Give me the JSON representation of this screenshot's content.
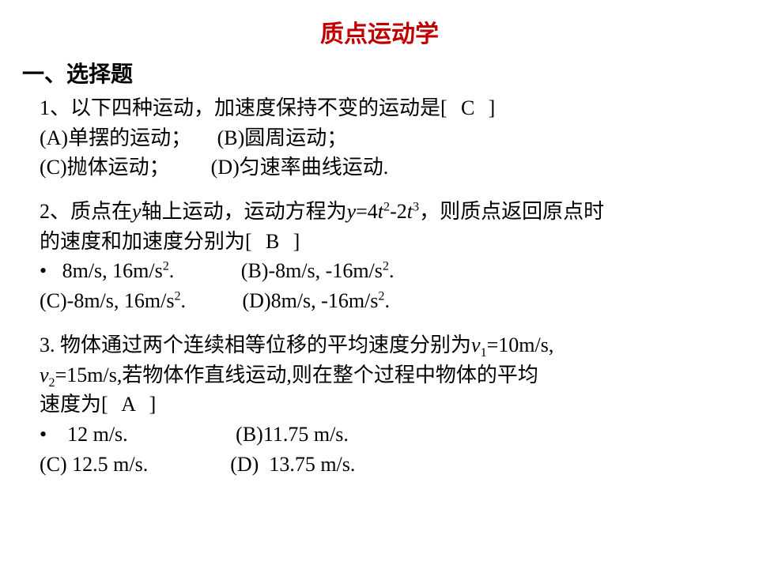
{
  "title": "质点运动学",
  "section": "一、选择题",
  "q1": {
    "stem_a": "1、以下四种运动，加速度保持不变的运动是[",
    "answer": "C",
    "stem_b": "]",
    "line2": "(A)单摆的运动；     (B)圆周运动；",
    "line3": "(C)抛体运动；        (D)匀速率曲线运动."
  },
  "q2": {
    "l1a": "2、质点在",
    "l1b": "轴上运动，运动方程为",
    "l1c": "=4",
    "l1d": "-2",
    "l1e": "，则质点返回原点时",
    "l2a": "的速度和加速度分别为[",
    "answer": "B",
    "l2b": "]",
    "l3a": "•   8m/s, 16m/s",
    "l3b": ".             (B)-8m/s, -16m/s",
    "l4a": "(C)-8m/s, 16m/s",
    "l4b": ".           (D)8m/s, -16m/s"
  },
  "q3": {
    "l1a": "3. 物体通过两个连续相等位移的平均速度分别为",
    "l1b": "=10m/s,",
    "l2a": "=15m/s,若物体作直线运动,则在整个过程中物体的平均",
    "l3a": "速度为[",
    "answer": "A",
    "l3b": "]",
    "l4": "•    12 m/s.                     (B)11.75 m/s.",
    "l5": "(C) 12.5 m/s.                (D)  13.75 m/s."
  }
}
